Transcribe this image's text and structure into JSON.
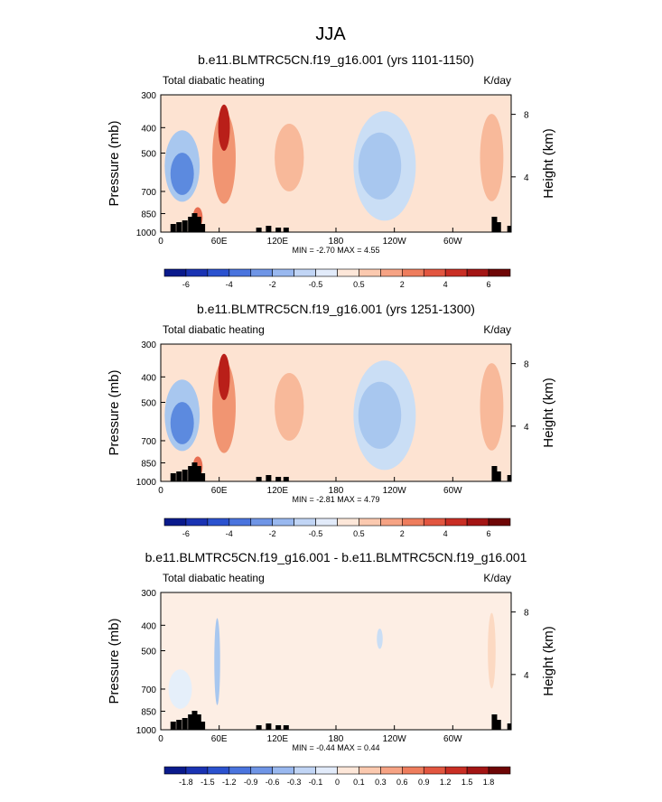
{
  "figure_title": "JJA",
  "chart_data": [
    {
      "type": "heatmap",
      "title": "b.e11.BLMTRC5CN.f19_g16.001 (yrs 1101-1150)",
      "subtitle_left": "Total diabatic heating",
      "subtitle_right": "K/day",
      "ylabel": "Pressure (mb)",
      "ylabel_right": "Height (km)",
      "x_ticks": [
        "0",
        "60E",
        "120E",
        "180",
        "120W",
        "60W"
      ],
      "y_ticks": [
        "300",
        "400",
        "500",
        "700",
        "850",
        "1000"
      ],
      "y_right_ticks": [
        "8",
        "4"
      ],
      "stats": "MIN = -2.70  MAX =  4.55",
      "min": -2.7,
      "max": 4.55,
      "colorbar_labels": [
        "-6",
        "-4",
        "-2",
        "-0.5",
        "0.5",
        "2",
        "4",
        "6"
      ],
      "patches": [
        {
          "lon": 22,
          "p": 560,
          "rx": 18,
          "rp": 170,
          "value": -1.5
        },
        {
          "lon": 22,
          "p": 600,
          "rx": 12,
          "rp": 110,
          "value": -2.5
        },
        {
          "lon": 38,
          "p": 880,
          "rx": 5,
          "rp": 80,
          "value": 2.5
        },
        {
          "lon": 65,
          "p": 520,
          "rx": 12,
          "rp": 200,
          "value": 2.0
        },
        {
          "lon": 65,
          "p": 400,
          "rx": 6,
          "rp": 80,
          "value": 4.0
        },
        {
          "lon": 132,
          "p": 520,
          "rx": 15,
          "rp": 150,
          "value": 1.5
        },
        {
          "lon": 230,
          "p": 560,
          "rx": 32,
          "rp": 250,
          "value": -0.8
        },
        {
          "lon": 225,
          "p": 560,
          "rx": 22,
          "rp": 160,
          "value": -1.5
        },
        {
          "lon": 340,
          "p": 520,
          "rx": 12,
          "rp": 190,
          "value": 1.5
        }
      ]
    },
    {
      "type": "heatmap",
      "title": "b.e11.BLMTRC5CN.f19_g16.001 (yrs 1251-1300)",
      "subtitle_left": "Total diabatic heating",
      "subtitle_right": "K/day",
      "ylabel": "Pressure (mb)",
      "ylabel_right": "Height (km)",
      "x_ticks": [
        "0",
        "60E",
        "120E",
        "180",
        "120W",
        "60W"
      ],
      "y_ticks": [
        "300",
        "400",
        "500",
        "700",
        "850",
        "1000"
      ],
      "y_right_ticks": [
        "8",
        "4"
      ],
      "stats": "MIN = -2.81  MAX =  4.79",
      "min": -2.81,
      "max": 4.79,
      "colorbar_labels": [
        "-6",
        "-4",
        "-2",
        "-0.5",
        "0.5",
        "2",
        "4",
        "6"
      ],
      "patches": [
        {
          "lon": 22,
          "p": 560,
          "rx": 18,
          "rp": 170,
          "value": -1.5
        },
        {
          "lon": 22,
          "p": 600,
          "rx": 12,
          "rp": 110,
          "value": -2.6
        },
        {
          "lon": 38,
          "p": 880,
          "rx": 5,
          "rp": 80,
          "value": 2.6
        },
        {
          "lon": 65,
          "p": 520,
          "rx": 12,
          "rp": 200,
          "value": 2.1
        },
        {
          "lon": 65,
          "p": 400,
          "rx": 6,
          "rp": 80,
          "value": 4.2
        },
        {
          "lon": 132,
          "p": 520,
          "rx": 15,
          "rp": 150,
          "value": 1.6
        },
        {
          "lon": 230,
          "p": 560,
          "rx": 32,
          "rp": 250,
          "value": -0.9
        },
        {
          "lon": 225,
          "p": 560,
          "rx": 22,
          "rp": 160,
          "value": -1.6
        },
        {
          "lon": 340,
          "p": 520,
          "rx": 12,
          "rp": 190,
          "value": 1.6
        }
      ]
    },
    {
      "type": "heatmap",
      "title": "b.e11.BLMTRC5CN.f19_g16.001 - b.e11.BLMTRC5CN.f19_g16.001",
      "subtitle_left": "Total diabatic heating",
      "subtitle_right": "K/day",
      "ylabel": "Pressure (mb)",
      "ylabel_right": "Height (km)",
      "x_ticks": [
        "0",
        "60E",
        "120E",
        "180",
        "120W",
        "60W"
      ],
      "y_ticks": [
        "300",
        "400",
        "500",
        "700",
        "850",
        "1000"
      ],
      "y_right_ticks": [
        "8",
        "4"
      ],
      "stats": "MIN = -0.44  MAX =  0.44",
      "min": -0.44,
      "max": 0.44,
      "colorbar_labels": [
        "-1.8",
        "-1.5",
        "-1.2",
        "-0.9",
        "-0.6",
        "-0.3",
        "-0.1",
        "0",
        "0.1",
        "0.3",
        "0.6",
        "0.9",
        "1.2",
        "1.5",
        "1.8"
      ],
      "patches": [
        {
          "lon": 58,
          "p": 550,
          "rx": 3,
          "rp": 200,
          "value": -0.35
        },
        {
          "lon": 225,
          "p": 450,
          "rx": 3,
          "rp": 40,
          "value": -0.2
        },
        {
          "lon": 340,
          "p": 500,
          "rx": 4,
          "rp": 160,
          "value": 0.15
        },
        {
          "lon": 20,
          "p": 700,
          "rx": 12,
          "rp": 120,
          "value": -0.05
        }
      ]
    }
  ]
}
